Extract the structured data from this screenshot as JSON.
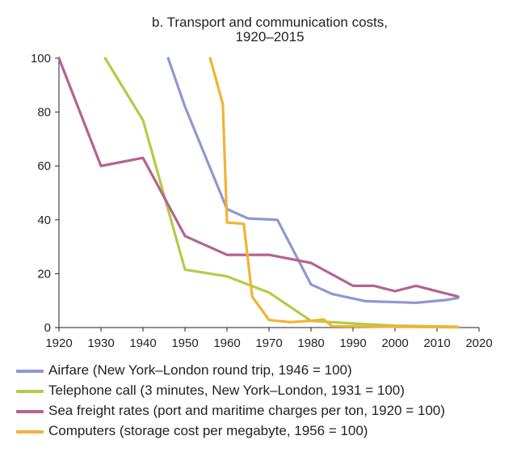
{
  "chart_data": {
    "type": "line",
    "title": "b. Transport and communication costs,",
    "subtitle": "1920–2015",
    "xlabel": "",
    "ylabel": "",
    "xlim": [
      1920,
      2020
    ],
    "ylim": [
      0,
      100
    ],
    "x_ticks": [
      1920,
      1930,
      1940,
      1950,
      1960,
      1970,
      1980,
      1990,
      2000,
      2010,
      2020
    ],
    "y_ticks": [
      0,
      20,
      40,
      60,
      80,
      100
    ],
    "grid": false,
    "legend_position": "bottom",
    "series": [
      {
        "name": "Airfare (New York–London round trip, 1946 = 100)",
        "color": "#8f98cf",
        "points": [
          [
            1946,
            100
          ],
          [
            1950,
            82
          ],
          [
            1960,
            44
          ],
          [
            1965,
            40.5
          ],
          [
            1972,
            40
          ],
          [
            1980,
            16
          ],
          [
            1985,
            12.5
          ],
          [
            1993,
            9.8
          ],
          [
            2005,
            9.2
          ],
          [
            2012,
            10.2
          ],
          [
            2015,
            11
          ]
        ]
      },
      {
        "name": "Telephone call (3 minutes, New York–London, 1931 = 100)",
        "color": "#b2cc47",
        "points": [
          [
            1931,
            100
          ],
          [
            1940,
            77
          ],
          [
            1950,
            21.5
          ],
          [
            1960,
            19
          ],
          [
            1970,
            13
          ],
          [
            1980,
            2.5
          ],
          [
            1990,
            1.5
          ],
          [
            2000,
            0.7
          ],
          [
            2015,
            0.3
          ]
        ]
      },
      {
        "name": "Sea freight rates (port and maritime charges per ton, 1920 = 100)",
        "color": "#b5638e",
        "points": [
          [
            1920,
            100
          ],
          [
            1930,
            60
          ],
          [
            1940,
            63
          ],
          [
            1950,
            34
          ],
          [
            1960,
            27
          ],
          [
            1970,
            27
          ],
          [
            1980,
            24
          ],
          [
            1990,
            15.5
          ],
          [
            1995,
            15.5
          ],
          [
            2000,
            13.5
          ],
          [
            2005,
            15.5
          ],
          [
            2015,
            11.5
          ]
        ]
      },
      {
        "name": "Computers (storage cost per megabyte, 1956 = 100)",
        "color": "#f1b334",
        "points": [
          [
            1956,
            100
          ],
          [
            1959,
            83
          ],
          [
            1960,
            39
          ],
          [
            1964,
            38.5
          ],
          [
            1966,
            11.5
          ],
          [
            1970,
            2.8
          ],
          [
            1975,
            2
          ],
          [
            1980,
            2.5
          ],
          [
            1983,
            3
          ],
          [
            1985,
            0.5
          ],
          [
            2015,
            0.1
          ]
        ]
      }
    ]
  }
}
